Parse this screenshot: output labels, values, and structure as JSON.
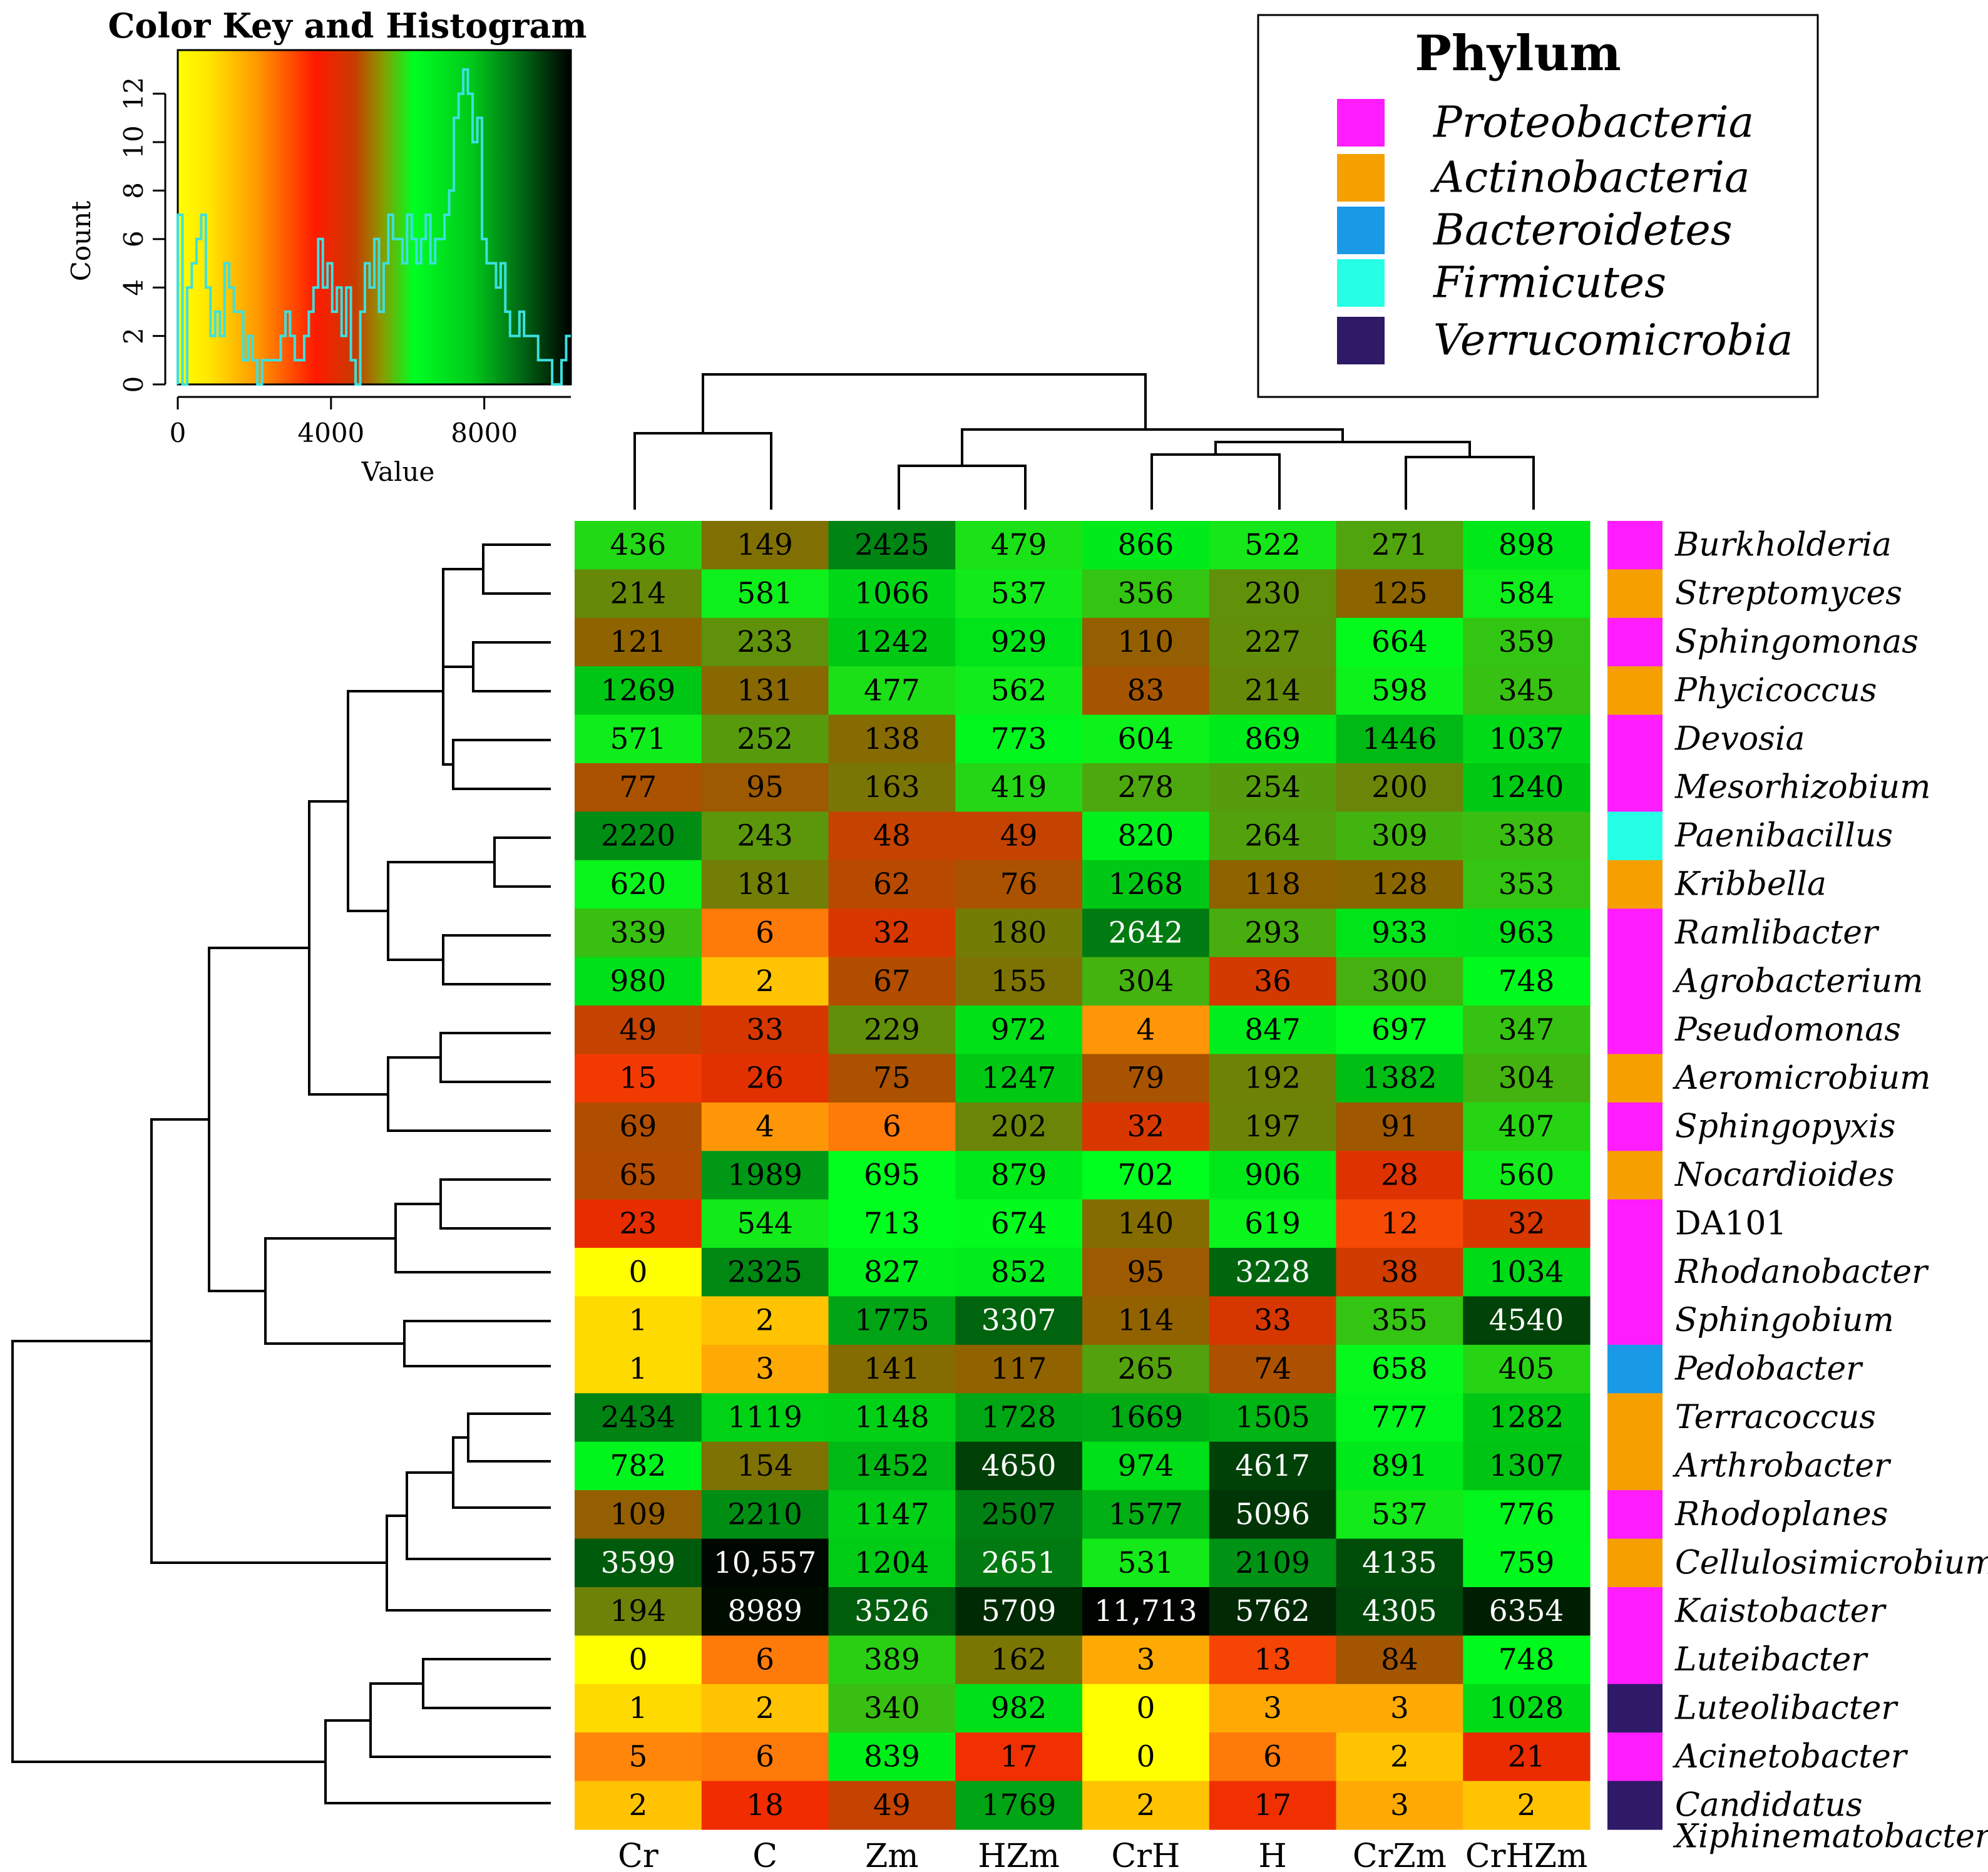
{
  "chart_data": {
    "type": "heatmap",
    "columns": [
      "Cr",
      "C",
      "Zm",
      "HZm",
      "CrH",
      "H",
      "CrZm",
      "CrHZm"
    ],
    "rows": [
      {
        "genus": "Burkholderia",
        "phylum": "Proteobacteria",
        "values": [
          436,
          149,
          2425,
          479,
          866,
          522,
          271,
          898
        ],
        "labels": [
          "436",
          "149",
          "2425",
          "479",
          "866",
          "522",
          "271",
          "898"
        ]
      },
      {
        "genus": "Streptomyces",
        "phylum": "Actinobacteria",
        "values": [
          214,
          581,
          1066,
          537,
          356,
          230,
          125,
          584
        ],
        "labels": [
          "214",
          "581",
          "1066",
          "537",
          "356",
          "230",
          "125",
          "584"
        ]
      },
      {
        "genus": "Sphingomonas",
        "phylum": "Proteobacteria",
        "values": [
          121,
          233,
          1242,
          929,
          110,
          227,
          664,
          359
        ],
        "labels": [
          "121",
          "233",
          "1242",
          "929",
          "110",
          "227",
          "664",
          "359"
        ]
      },
      {
        "genus": "Phycicoccus",
        "phylum": "Actinobacteria",
        "values": [
          1269,
          131,
          477,
          562,
          83,
          214,
          598,
          345
        ],
        "labels": [
          "1269",
          "131",
          "477",
          "562",
          "83",
          "214",
          "598",
          "345"
        ]
      },
      {
        "genus": "Devosia",
        "phylum": "Proteobacteria",
        "values": [
          571,
          252,
          138,
          773,
          604,
          869,
          1446,
          1037
        ],
        "labels": [
          "571",
          "252",
          "138",
          "773",
          "604",
          "869",
          "1446",
          "1037"
        ]
      },
      {
        "genus": "Mesorhizobium",
        "phylum": "Proteobacteria",
        "values": [
          77,
          95,
          163,
          419,
          278,
          254,
          200,
          1240
        ],
        "labels": [
          "77",
          "95",
          "163",
          "419",
          "278",
          "254",
          "200",
          "1240"
        ]
      },
      {
        "genus": "Paenibacillus",
        "phylum": "Firmicutes",
        "values": [
          2220,
          243,
          48,
          49,
          820,
          264,
          309,
          338
        ],
        "labels": [
          "2220",
          "243",
          "48",
          "49",
          "820",
          "264",
          "309",
          "338"
        ]
      },
      {
        "genus": "Kribbella",
        "phylum": "Actinobacteria",
        "values": [
          620,
          181,
          62,
          76,
          1268,
          118,
          128,
          353
        ],
        "labels": [
          "620",
          "181",
          "62",
          "76",
          "1268",
          "118",
          "128",
          "353"
        ]
      },
      {
        "genus": "Ramlibacter",
        "phylum": "Proteobacteria",
        "values": [
          339,
          6,
          32,
          180,
          2642,
          293,
          933,
          963
        ],
        "labels": [
          "339",
          "6",
          "32",
          "180",
          "2642",
          "293",
          "933",
          "963"
        ]
      },
      {
        "genus": "Agrobacterium",
        "phylum": "Proteobacteria",
        "values": [
          980,
          2,
          67,
          155,
          304,
          36,
          300,
          748
        ],
        "labels": [
          "980",
          "2",
          "67",
          "155",
          "304",
          "36",
          "300",
          "748"
        ]
      },
      {
        "genus": "Pseudomonas",
        "phylum": "Proteobacteria",
        "values": [
          49,
          33,
          229,
          972,
          4,
          847,
          697,
          347
        ],
        "labels": [
          "49",
          "33",
          "229",
          "972",
          "4",
          "847",
          "697",
          "347"
        ]
      },
      {
        "genus": "Aeromicrobium",
        "phylum": "Actinobacteria",
        "values": [
          15,
          26,
          75,
          1247,
          79,
          192,
          1382,
          304
        ],
        "labels": [
          "15",
          "26",
          "75",
          "1247",
          "79",
          "192",
          "1382",
          "304"
        ]
      },
      {
        "genus": "Sphingopyxis",
        "phylum": "Proteobacteria",
        "values": [
          69,
          4,
          6,
          202,
          32,
          197,
          91,
          407
        ],
        "labels": [
          "69",
          "4",
          "6",
          "202",
          "32",
          "197",
          "91",
          "407"
        ]
      },
      {
        "genus": "Nocardioides",
        "phylum": "Actinobacteria",
        "values": [
          65,
          1989,
          695,
          879,
          702,
          906,
          28,
          560
        ],
        "labels": [
          "65",
          "1989",
          "695",
          "879",
          "702",
          "906",
          "28",
          "560"
        ]
      },
      {
        "genus": "DA101",
        "phylum": "Proteobacteria",
        "upright": true,
        "values": [
          23,
          544,
          713,
          674,
          140,
          619,
          12,
          32
        ],
        "labels": [
          "23",
          "544",
          "713",
          "674",
          "140",
          "619",
          "12",
          "32"
        ]
      },
      {
        "genus": "Rhodanobacter",
        "phylum": "Proteobacteria",
        "values": [
          0,
          2325,
          827,
          852,
          95,
          3228,
          38,
          1034
        ],
        "labels": [
          "0",
          "2325",
          "827",
          "852",
          "95",
          "3228",
          "38",
          "1034"
        ]
      },
      {
        "genus": "Sphingobium",
        "phylum": "Proteobacteria",
        "values": [
          1,
          2,
          1775,
          3307,
          114,
          33,
          355,
          4540
        ],
        "labels": [
          "1",
          "2",
          "1775",
          "3307",
          "114",
          "33",
          "355",
          "4540"
        ]
      },
      {
        "genus": "Pedobacter",
        "phylum": "Bacteroidetes",
        "values": [
          1,
          3,
          141,
          117,
          265,
          74,
          658,
          405
        ],
        "labels": [
          "1",
          "3",
          "141",
          "117",
          "265",
          "74",
          "658",
          "405"
        ]
      },
      {
        "genus": "Terracoccus",
        "phylum": "Actinobacteria",
        "values": [
          2434,
          1119,
          1148,
          1728,
          1669,
          1505,
          777,
          1282
        ],
        "labels": [
          "2434",
          "1119",
          "1148",
          "1728",
          "1669",
          "1505",
          "777",
          "1282"
        ]
      },
      {
        "genus": "Arthrobacter",
        "phylum": "Actinobacteria",
        "values": [
          782,
          154,
          1452,
          4650,
          974,
          4617,
          891,
          1307
        ],
        "labels": [
          "782",
          "154",
          "1452",
          "4650",
          "974",
          "4617",
          "891",
          "1307"
        ]
      },
      {
        "genus": "Rhodoplanes",
        "phylum": "Proteobacteria",
        "values": [
          109,
          2210,
          1147,
          2507,
          1577,
          5096,
          537,
          776
        ],
        "labels": [
          "109",
          "2210",
          "1147",
          "2507",
          "1577",
          "5096",
          "537",
          "776"
        ]
      },
      {
        "genus": "Cellulosimicrobium",
        "phylum": "Actinobacteria",
        "values": [
          3599,
          10557,
          1204,
          2651,
          531,
          2109,
          4135,
          759
        ],
        "labels": [
          "3599",
          "10,557",
          "1204",
          "2651",
          "531",
          "2109",
          "4135",
          "759"
        ]
      },
      {
        "genus": "Kaistobacter",
        "phylum": "Proteobacteria",
        "values": [
          194,
          8989,
          3526,
          5709,
          11713,
          5762,
          4305,
          6354
        ],
        "labels": [
          "194",
          "8989",
          "3526",
          "5709",
          "11,713",
          "5762",
          "4305",
          "6354"
        ]
      },
      {
        "genus": "Luteibacter",
        "phylum": "Proteobacteria",
        "values": [
          0,
          6,
          389,
          162,
          3,
          13,
          84,
          748
        ],
        "labels": [
          "0",
          "6",
          "389",
          "162",
          "3",
          "13",
          "84",
          "748"
        ]
      },
      {
        "genus": "Luteolibacter",
        "phylum": "Verrucomicrobia",
        "values": [
          1,
          2,
          340,
          982,
          0,
          3,
          3,
          1028
        ],
        "labels": [
          "1",
          "2",
          "340",
          "982",
          "0",
          "3",
          "3",
          "1028"
        ]
      },
      {
        "genus": "Acinetobacter",
        "phylum": "Proteobacteria",
        "values": [
          5,
          6,
          839,
          17,
          0,
          6,
          2,
          21
        ],
        "labels": [
          "5",
          "6",
          "839",
          "17",
          "0",
          "6",
          "2",
          "21"
        ]
      },
      {
        "genus": "Candidatus Xiphinematobacter",
        "genus_lines": [
          "Candidatus",
          "Xiphinematobacter"
        ],
        "phylum": "Verrucomicrobia",
        "values": [
          2,
          18,
          49,
          1769,
          2,
          17,
          3,
          2
        ],
        "labels": [
          "2",
          "18",
          "49",
          "1769",
          "2",
          "17",
          "3",
          "2"
        ]
      }
    ],
    "legend": {
      "title": "Phylum",
      "items": [
        {
          "name": "Proteobacteria",
          "color": "#ff1cff"
        },
        {
          "name": "Actinobacteria",
          "color": "#f5a000"
        },
        {
          "name": "Bacteroidetes",
          "color": "#1a99e6"
        },
        {
          "name": "Firmicutes",
          "color": "#26ffe6"
        },
        {
          "name": "Verrucomicrobia",
          "color": "#2e1a66"
        }
      ]
    },
    "color_key": {
      "title": "Color Key and Histogram",
      "xlabel": "Value",
      "ylabel": "Count",
      "x_ticks": [
        0,
        4000,
        8000
      ],
      "y_ticks": [
        0,
        2,
        4,
        6,
        8,
        10,
        12
      ],
      "color_stops": [
        "#ffff00",
        "#ff8c00",
        "#ff1a00",
        "#e61a00",
        "#00ff22",
        "#00b31a",
        "#000000"
      ],
      "histogram_color": "#3ce0e0",
      "histogram_counts": [
        7,
        0,
        4,
        5,
        6,
        7,
        4,
        2,
        3,
        2,
        5,
        4,
        3,
        3,
        1,
        2,
        1,
        0,
        1,
        1,
        1,
        1,
        2,
        3,
        2,
        1,
        1,
        2,
        3,
        4,
        6,
        4,
        5,
        3,
        4,
        2,
        4,
        1,
        0,
        3,
        5,
        4,
        6,
        3,
        5,
        7,
        6,
        6,
        5,
        7,
        6,
        5,
        6,
        7,
        5,
        6,
        6,
        7,
        8,
        11,
        12,
        13,
        12,
        10,
        11,
        6,
        5,
        5,
        4,
        5,
        3,
        2,
        2,
        3,
        2,
        2,
        2,
        1,
        1,
        1,
        0,
        0,
        1,
        2
      ]
    }
  }
}
